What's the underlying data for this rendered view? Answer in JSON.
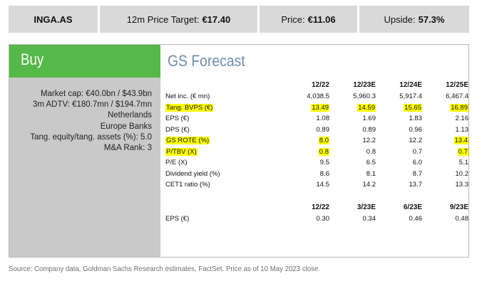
{
  "header": {
    "ticker": "INGA.AS",
    "target_label": "12m Price Target:",
    "target_value": "€17.40",
    "price_label": "Price:",
    "price_value": "€11.06",
    "upside_label": "Upside:",
    "upside_value": "57.3%"
  },
  "rating": "Buy",
  "forecast_title": "GS Forecast",
  "stats": [
    "Market cap: €40.0bn / $43.9bn",
    "3m ADTV: €180.7mn / $194.7mn",
    "Netherlands",
    "Europe Banks",
    "Tang. equity/tang. assets (%): 5.0",
    "M&A Rank: 3"
  ],
  "annual": {
    "columns": [
      "12/22",
      "12/23E",
      "12/24E",
      "12/25E"
    ],
    "rows": [
      {
        "label": "Net inc. (€ mn)",
        "values": [
          "4,038.5",
          "5,960.3",
          "5,917.4",
          "6,467.4"
        ],
        "highlight_label": false,
        "highlight": [
          false,
          false,
          false,
          false
        ]
      },
      {
        "label": "Tang. BVPS (€)",
        "values": [
          "13.49",
          "14.59",
          "15.65",
          "16.89"
        ],
        "highlight_label": true,
        "highlight": [
          true,
          true,
          true,
          true
        ]
      },
      {
        "label": "EPS (€)",
        "values": [
          "1.08",
          "1.69",
          "1.83",
          "2.16"
        ],
        "highlight_label": false,
        "highlight": [
          false,
          false,
          false,
          false
        ]
      },
      {
        "label": "DPS (€)",
        "values": [
          "0.89",
          "0.89",
          "0.96",
          "1.13"
        ],
        "highlight_label": false,
        "highlight": [
          false,
          false,
          false,
          false
        ]
      },
      {
        "label": "GS ROTE (%)",
        "values": [
          "8.0",
          "12.2",
          "12.2",
          "13.4"
        ],
        "highlight_label": true,
        "highlight": [
          true,
          false,
          false,
          true
        ]
      },
      {
        "label": "P/TBV (X)",
        "values": [
          "0.8",
          "0.8",
          "0.7",
          "0.7"
        ],
        "highlight_label": true,
        "highlight": [
          true,
          false,
          false,
          true
        ]
      },
      {
        "label": "P/E (X)",
        "values": [
          "9.5",
          "6.5",
          "6.0",
          "5.1"
        ],
        "highlight_label": false,
        "highlight": [
          false,
          false,
          false,
          false
        ]
      },
      {
        "label": "Dividend yield (%)",
        "values": [
          "8.6",
          "8.1",
          "8.7",
          "10.2"
        ],
        "highlight_label": false,
        "highlight": [
          false,
          false,
          false,
          false
        ]
      },
      {
        "label": "CET1 ratio (%)",
        "values": [
          "14.5",
          "14.2",
          "13.7",
          "13.3"
        ],
        "highlight_label": false,
        "highlight": [
          false,
          false,
          false,
          false
        ]
      }
    ]
  },
  "quarterly": {
    "columns": [
      "12/22",
      "3/23E",
      "6/23E",
      "9/23E"
    ],
    "rows": [
      {
        "label": "EPS (€)",
        "values": [
          "0.30",
          "0.34",
          "0.46",
          "0.48"
        ]
      }
    ]
  },
  "source": "Source: Company data, Goldman Sachs Research estimates, FactSet. Price as of 10 May 2023 close.",
  "colors": {
    "buy_green": "#54b948",
    "title_blue": "#6f8eab",
    "highlight_yellow": "#ffff00",
    "panel_gray": "#c9c9c9",
    "header_gray": "#d9d9d9"
  }
}
